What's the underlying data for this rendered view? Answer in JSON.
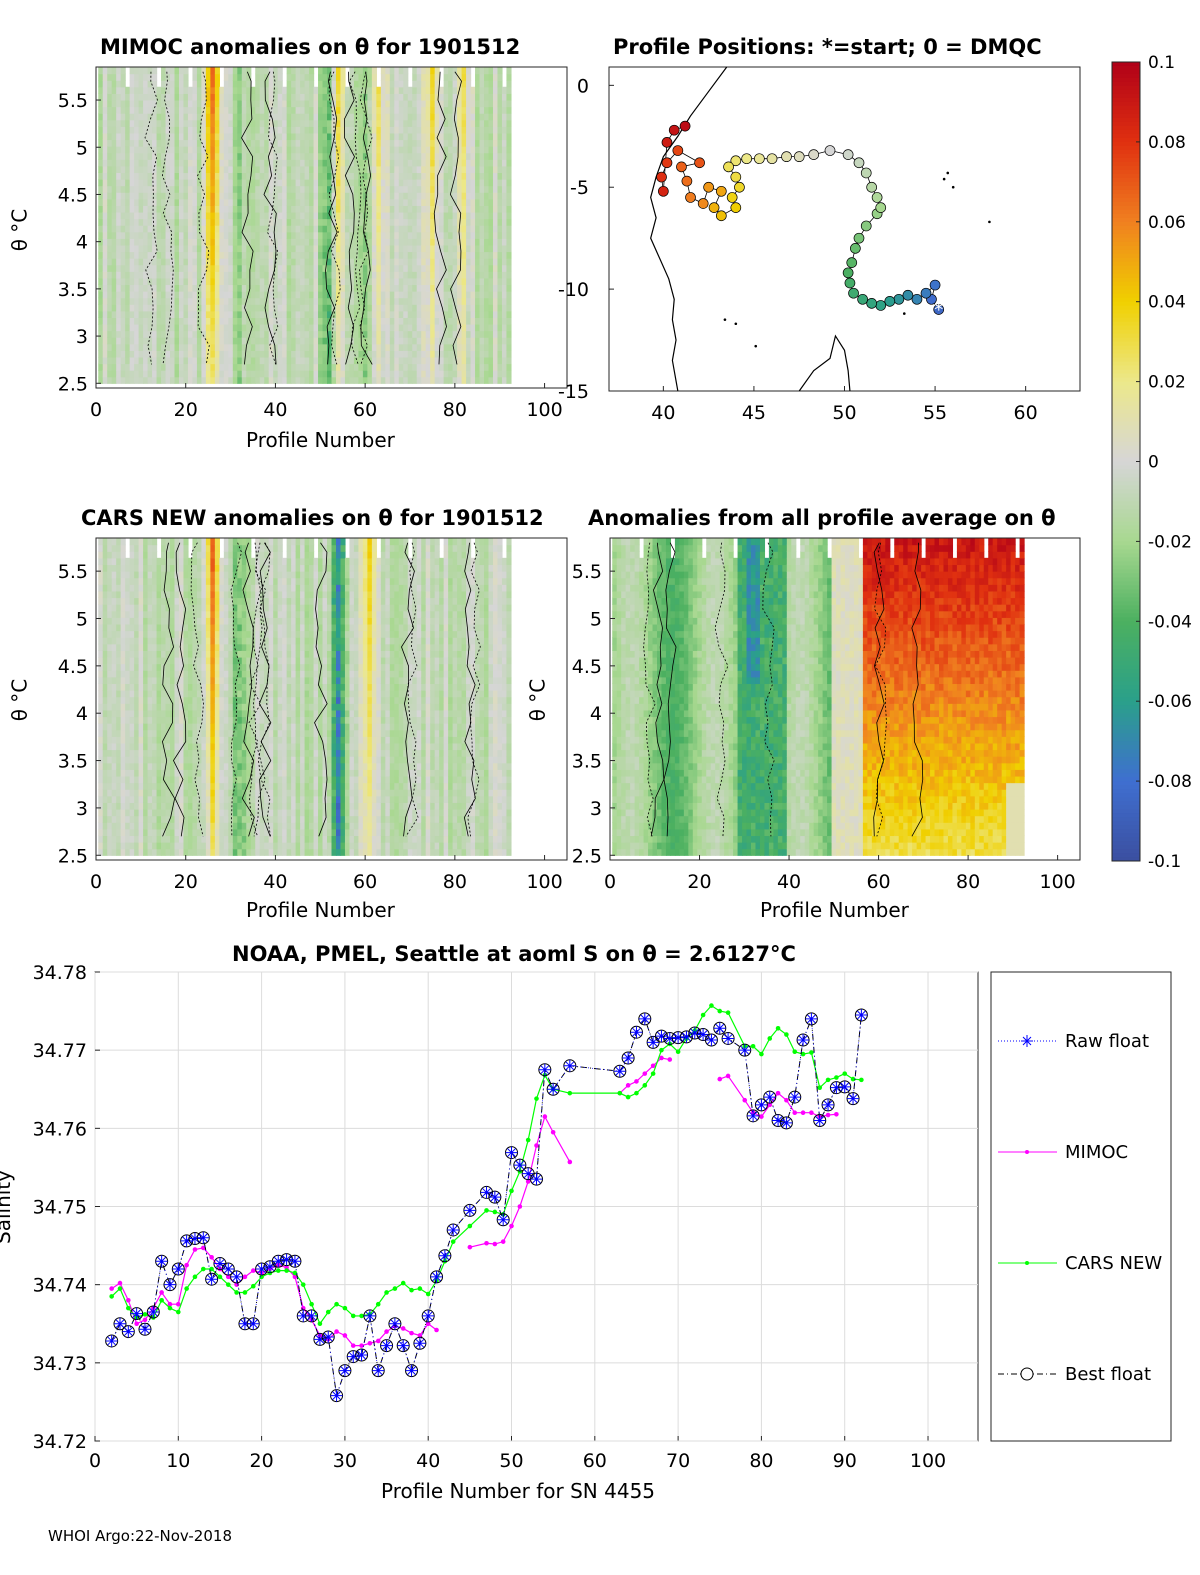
{
  "chart_data": [
    {
      "type": "heatmap",
      "id": "mimoc",
      "title": "MIMOC anomalies on θ  for 1901512",
      "xlabel": "Profile Number",
      "ylabel": "θ °C",
      "xlim": [
        0,
        105
      ],
      "ylim": [
        2.45,
        5.85
      ],
      "xticks": [
        "0",
        "20",
        "40",
        "60",
        "80",
        "100"
      ],
      "yticks": [
        "2.5",
        "3",
        "3.5",
        "4",
        "4.5",
        "5",
        "5.5"
      ],
      "profiles": 92,
      "warm_bands": [
        [
          26,
          0.07
        ],
        [
          54,
          0.04
        ],
        [
          63,
          0.035
        ],
        [
          75,
          0.04
        ],
        [
          82,
          0.03
        ]
      ],
      "cool_bands": [
        [
          32,
          -0.02
        ],
        [
          52,
          -0.04
        ],
        [
          60,
          -0.02
        ]
      ]
    },
    {
      "type": "scatter",
      "id": "positions",
      "title": "Profile Positions: *=start; 0 = DMQC",
      "xlim": [
        37,
        63
      ],
      "ylim": [
        -15,
        0.9
      ],
      "xticks": [
        "40",
        "45",
        "50",
        "55",
        "60"
      ],
      "yticks": [
        "0",
        "-5",
        "-10",
        "-15"
      ],
      "track": [
        [
          55.2,
          -11
        ],
        [
          54.8,
          -10.5
        ],
        [
          55,
          -9.8
        ],
        [
          54.5,
          -10.2
        ],
        [
          54,
          -10.5
        ],
        [
          53.5,
          -10.3
        ],
        [
          53,
          -10.5
        ],
        [
          52.5,
          -10.6
        ],
        [
          52,
          -10.8
        ],
        [
          51.5,
          -10.7
        ],
        [
          51,
          -10.5
        ],
        [
          50.5,
          -10.2
        ],
        [
          50.3,
          -9.7
        ],
        [
          50.2,
          -9.2
        ],
        [
          50.4,
          -8.7
        ],
        [
          50.6,
          -8
        ],
        [
          50.8,
          -7.5
        ],
        [
          51.2,
          -6.9
        ],
        [
          51.8,
          -6.3
        ],
        [
          52,
          -6
        ],
        [
          51.8,
          -5.5
        ],
        [
          51.5,
          -5
        ],
        [
          51.2,
          -4.3
        ],
        [
          50.8,
          -3.8
        ],
        [
          50.2,
          -3.4
        ],
        [
          49.2,
          -3.2
        ],
        [
          48.3,
          -3.4
        ],
        [
          47.5,
          -3.5
        ],
        [
          46.8,
          -3.5
        ],
        [
          46,
          -3.6
        ],
        [
          45.3,
          -3.6
        ],
        [
          44.6,
          -3.6
        ],
        [
          44,
          -3.7
        ],
        [
          43.6,
          -4
        ],
        [
          44,
          -4.5
        ],
        [
          44.2,
          -5
        ],
        [
          43.8,
          -5.5
        ],
        [
          44,
          -6
        ],
        [
          43.2,
          -6.4
        ],
        [
          42.8,
          -6
        ],
        [
          43.2,
          -5.2
        ],
        [
          42.5,
          -5
        ],
        [
          42.2,
          -5.8
        ],
        [
          41.5,
          -5.5
        ],
        [
          41.3,
          -4.7
        ],
        [
          41,
          -4
        ],
        [
          42,
          -3.8
        ],
        [
          40.8,
          -3.2
        ],
        [
          40.2,
          -3.8
        ],
        [
          39.9,
          -4.5
        ],
        [
          40,
          -5.2
        ],
        [
          40.2,
          -2.8
        ],
        [
          40.6,
          -2.2
        ],
        [
          41.2,
          -2
        ]
      ]
    },
    {
      "type": "heatmap",
      "id": "cars",
      "title": "CARS NEW anomalies on θ for 1901512",
      "xlabel": "Profile Number",
      "ylabel": "θ °C",
      "xlim": [
        0,
        105
      ],
      "ylim": [
        2.45,
        5.85
      ],
      "xticks": [
        "0",
        "20",
        "40",
        "60",
        "80",
        "100"
      ],
      "yticks": [
        "2.5",
        "3",
        "3.5",
        "4",
        "4.5",
        "5",
        "5.5"
      ],
      "profiles": 92,
      "warm_bands": [
        [
          26,
          0.07
        ],
        [
          61,
          0.04
        ]
      ],
      "cool_bands": [
        [
          32,
          -0.03
        ],
        [
          54,
          -0.07
        ]
      ]
    },
    {
      "type": "heatmap",
      "id": "average",
      "title": "Anomalies from all profile average on θ",
      "xlabel": "Profile Number",
      "ylabel": "θ °C",
      "xlim": [
        0,
        105
      ],
      "ylim": [
        2.45,
        5.85
      ],
      "xticks": [
        "0",
        "20",
        "40",
        "60",
        "80",
        "100"
      ],
      "yticks": [
        "2.5",
        "3",
        "3.5",
        "4",
        "4.5",
        "5",
        "5.5"
      ],
      "profiles": 92,
      "warm_from_profile": 57,
      "warm_max": 0.1,
      "cool_min": -0.07
    },
    {
      "type": "colorbar",
      "id": "colorbar",
      "range": [
        -0.1,
        0.1
      ],
      "ticks": [
        "0.1",
        "0.08",
        "0.06",
        "0.04",
        "0.02",
        "0",
        "-0.02",
        "-0.04",
        "-0.06",
        "-0.08",
        "-0.1"
      ],
      "colors": [
        "#3b4fa0",
        "#3f6fd0",
        "#2aa08a",
        "#4cb060",
        "#a8d890",
        "#d6d6d6",
        "#ece88a",
        "#f0d000",
        "#f08020",
        "#e03010",
        "#b00018"
      ]
    },
    {
      "type": "line",
      "id": "salinity",
      "title": "NOAA, PMEL, Seattle at aoml S on θ = 2.6127°C",
      "xlabel": "Profile Number for SN 4455",
      "ylabel": "Salinity",
      "xlim": [
        0,
        106
      ],
      "ylim": [
        34.72,
        34.78
      ],
      "xticks": [
        "0",
        "10",
        "20",
        "30",
        "40",
        "50",
        "60",
        "70",
        "80",
        "90",
        "100"
      ],
      "yticks": [
        "34.72",
        "34.73",
        "34.74",
        "34.75",
        "34.76",
        "34.77",
        "34.78"
      ],
      "grid": true,
      "legend_position": "right-outside",
      "series": [
        {
          "name": "Raw float",
          "color": "#0000ff",
          "x": [
            2,
            3,
            4,
            5,
            6,
            7,
            8,
            9,
            10,
            11,
            12,
            13,
            14,
            15,
            16,
            17,
            18,
            19,
            20,
            21,
            22,
            23,
            24,
            25,
            26,
            27,
            28,
            29,
            30,
            31,
            32,
            33,
            34,
            35,
            36,
            37,
            38,
            39,
            40,
            41,
            42,
            43,
            45,
            47,
            48,
            49,
            50,
            51,
            52,
            53,
            54,
            55,
            57,
            63,
            64,
            65,
            66,
            67,
            68,
            69,
            70,
            71,
            72,
            73,
            74,
            75,
            76,
            78,
            79,
            80,
            81,
            82,
            83,
            84,
            85,
            86,
            87,
            88,
            89,
            90,
            91,
            92
          ],
          "y": [
            34.7328,
            34.735,
            34.734,
            34.7363,
            34.7343,
            34.7365,
            34.743,
            34.74,
            34.742,
            34.7456,
            34.7459,
            34.746,
            34.7407,
            34.7427,
            34.742,
            34.741,
            34.735,
            34.735,
            34.742,
            34.7423,
            34.743,
            34.7432,
            34.743,
            34.736,
            34.736,
            34.733,
            34.7333,
            34.7258,
            34.729,
            34.7308,
            34.731,
            34.736,
            34.729,
            34.7322,
            34.735,
            34.7322,
            34.729,
            34.7325,
            34.736,
            34.741,
            34.7437,
            34.747,
            34.7495,
            34.7518,
            34.7512,
            34.7483,
            34.7569,
            34.7553,
            34.7542,
            34.7535,
            34.7675,
            34.765,
            34.768,
            34.7673,
            34.769,
            34.7723,
            34.774,
            34.771,
            34.7718,
            34.7715,
            34.7716,
            34.7717,
            34.7722,
            34.772,
            34.7713,
            34.7728,
            34.7715,
            34.77,
            34.7616,
            34.763,
            34.764,
            34.761,
            34.7607,
            34.764,
            34.7713,
            34.774,
            34.761,
            34.763,
            34.7652,
            34.7653,
            34.7638,
            34.7745
          ]
        },
        {
          "name": "MIMOC",
          "color": "#ff00ff",
          "segments": [
            {
              "x": [
                2,
                3,
                4,
                5,
                6,
                7,
                8,
                9,
                10,
                11,
                12,
                13,
                14,
                15,
                16,
                17,
                18,
                19,
                20,
                21,
                22,
                23,
                24,
                25,
                26,
                27,
                28,
                29,
                30,
                31,
                32,
                33,
                34,
                35,
                36,
                37,
                38,
                39,
                40,
                41
              ],
              "y": [
                34.7395,
                34.7402,
                34.738,
                34.735,
                34.7355,
                34.737,
                34.739,
                34.7375,
                34.7375,
                34.7425,
                34.7445,
                34.7447,
                34.7435,
                34.742,
                34.741,
                34.74,
                34.741,
                34.7418,
                34.7415,
                34.742,
                34.7425,
                34.7422,
                34.741,
                34.737,
                34.7355,
                34.7335,
                34.733,
                34.734,
                34.7335,
                34.7322,
                34.7322,
                34.7325,
                34.7328,
                34.734,
                34.7347,
                34.7344,
                34.7338,
                34.7335,
                34.735,
                34.7342
              ]
            },
            {
              "x": [
                45,
                47,
                48,
                49,
                50,
                51,
                52,
                53,
                54,
                55,
                57
              ],
              "y": [
                34.7448,
                34.7453,
                34.7452,
                34.7455,
                34.7475,
                34.75,
                34.7532,
                34.7578,
                34.7615,
                34.7595,
                34.7557
              ]
            },
            {
              "x": [
                63,
                64,
                65,
                66,
                67,
                68,
                69
              ],
              "y": [
                34.7645,
                34.7655,
                34.766,
                34.767,
                34.768,
                34.769,
                34.7688
              ]
            },
            {
              "x": [
                75,
                76,
                78,
                79,
                80,
                81,
                82,
                83,
                84,
                85,
                86,
                87,
                88,
                89
              ],
              "y": [
                34.7663,
                34.7667,
                34.7636,
                34.762,
                34.7615,
                34.763,
                34.7645,
                34.7636,
                34.762,
                34.762,
                34.762,
                34.7615,
                34.7617,
                34.7618
              ]
            }
          ]
        },
        {
          "name": "CARS NEW",
          "color": "#00ff00",
          "x": [
            2,
            3,
            4,
            5,
            6,
            7,
            8,
            9,
            10,
            11,
            12,
            13,
            14,
            15,
            16,
            17,
            18,
            19,
            20,
            21,
            22,
            23,
            24,
            25,
            26,
            27,
            28,
            29,
            30,
            31,
            32,
            33,
            34,
            35,
            36,
            37,
            38,
            39,
            40,
            41,
            42,
            43,
            45,
            47,
            48,
            49,
            50,
            51,
            52,
            53,
            54,
            55,
            57,
            63,
            64,
            65,
            66,
            67,
            68,
            69,
            70,
            71,
            72,
            73,
            74,
            75,
            76,
            78,
            79,
            80,
            81,
            82,
            83,
            84,
            85,
            86,
            87,
            88,
            89,
            90,
            91,
            92
          ],
          "y": [
            34.7385,
            34.7395,
            34.737,
            34.7358,
            34.7362,
            34.7358,
            34.738,
            34.737,
            34.7365,
            34.7395,
            34.741,
            34.742,
            34.742,
            34.741,
            34.74,
            34.739,
            34.739,
            34.7398,
            34.741,
            34.7415,
            34.7418,
            34.7418,
            34.7415,
            34.74,
            34.7375,
            34.735,
            34.7365,
            34.7375,
            34.737,
            34.736,
            34.736,
            34.7362,
            34.7375,
            34.739,
            34.7395,
            34.7402,
            34.7393,
            34.7395,
            34.7388,
            34.7405,
            34.743,
            34.7455,
            34.7475,
            34.7495,
            34.7493,
            34.749,
            34.752,
            34.7545,
            34.7585,
            34.7638,
            34.7668,
            34.765,
            34.7645,
            34.7645,
            34.764,
            34.7645,
            34.7655,
            34.767,
            34.77,
            34.7708,
            34.7698,
            34.7715,
            34.7725,
            34.7745,
            34.7757,
            34.775,
            34.7748,
            34.7705,
            34.7705,
            34.7695,
            34.7715,
            34.7728,
            34.772,
            34.7698,
            34.7695,
            34.7697,
            34.7652,
            34.7662,
            34.7665,
            34.767,
            34.7663,
            34.7662
          ]
        },
        {
          "name": "Best float",
          "color": "#000000",
          "same_as": "Raw float"
        }
      ]
    }
  ],
  "footer": "WHOI Argo:22-Nov-2018"
}
